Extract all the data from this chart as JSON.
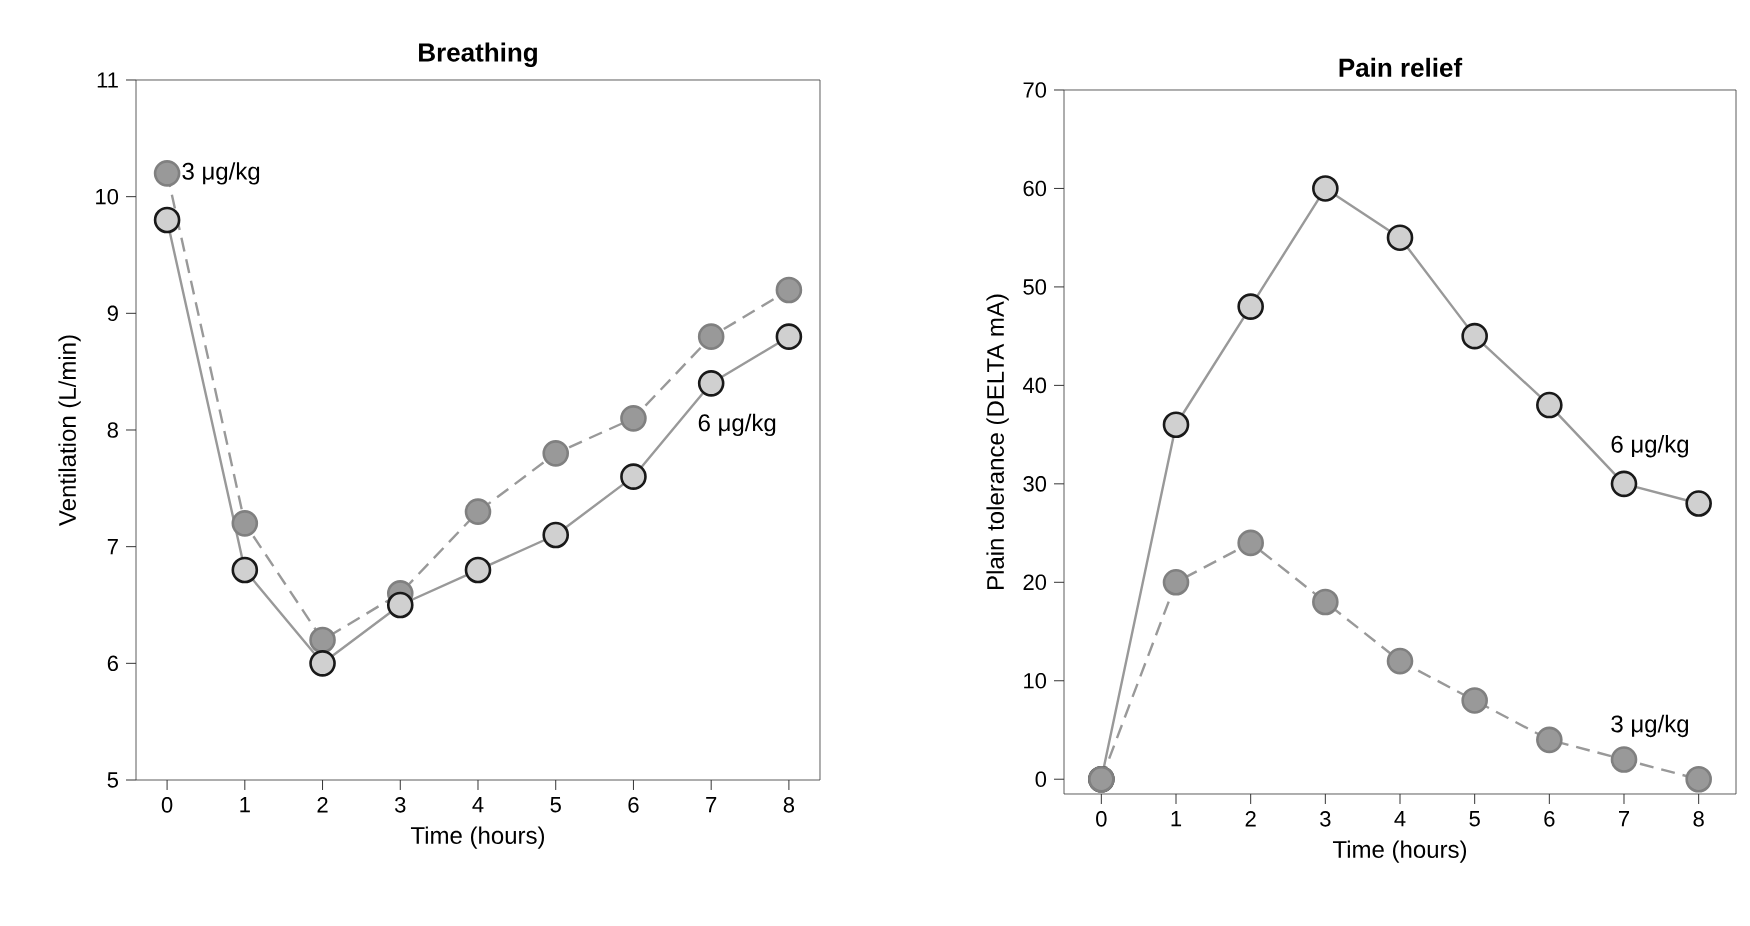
{
  "chart_data": [
    {
      "type": "line",
      "title": "Breathing",
      "xlabel": "Time (hours)",
      "ylabel": "Ventilation (L/min)",
      "x": [
        0,
        1,
        2,
        3,
        4,
        5,
        6,
        7,
        8
      ],
      "xlim": [
        -0.4,
        8.4
      ],
      "xticks": [
        0,
        1,
        2,
        3,
        4,
        5,
        6,
        7,
        8
      ],
      "ylim": [
        5,
        11
      ],
      "yticks": [
        5,
        6,
        7,
        8,
        9,
        10,
        11
      ],
      "marker": "circle",
      "grid": false,
      "legend": false,
      "series": [
        {
          "name": "3 μg/kg",
          "color": "#999999",
          "line_style": "dashed",
          "values": [
            10.2,
            7.2,
            6.2,
            6.6,
            7.3,
            7.8,
            8.1,
            8.8,
            9.2
          ]
        },
        {
          "name": "6 μg/kg",
          "color": "#d0d0d0",
          "line_style": "solid",
          "values": [
            9.8,
            6.8,
            6.0,
            6.5,
            6.8,
            7.1,
            7.6,
            8.4,
            8.8
          ]
        }
      ]
    },
    {
      "type": "line",
      "title": "Pain relief",
      "xlabel": "Time (hours)",
      "ylabel": "Plain tolerance (DELTA mA)",
      "x": [
        0,
        1,
        2,
        3,
        4,
        5,
        6,
        7,
        8
      ],
      "xlim": [
        -0.5,
        8.5
      ],
      "xticks": [
        0,
        1,
        2,
        3,
        4,
        5,
        6,
        7,
        8
      ],
      "ylim": [
        -1.5,
        70
      ],
      "yticks": [
        0,
        10,
        20,
        30,
        40,
        50,
        60,
        70
      ],
      "marker": "circle",
      "grid": false,
      "legend": false,
      "series": [
        {
          "name": "6 μg/kg",
          "color": "#d0d0d0",
          "line_style": "solid",
          "values": [
            0,
            36,
            48,
            60,
            55,
            45,
            38,
            30,
            28
          ]
        },
        {
          "name": "3 μg/kg",
          "color": "#999999",
          "line_style": "dashed",
          "values": [
            0,
            20,
            24,
            18,
            12,
            8,
            4,
            2,
            0
          ]
        }
      ]
    }
  ]
}
